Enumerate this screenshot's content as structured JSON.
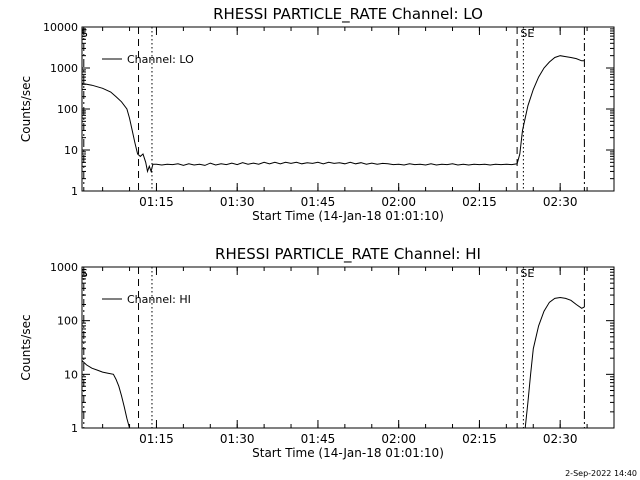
{
  "footer_date": "2-Sep-2022 14:40",
  "colors": {
    "line": "#000000",
    "background": "#ffffff"
  },
  "chart_data": [
    {
      "type": "line",
      "title": "RHESSI PARTICLE_RATE Channel: LO",
      "xlabel": "Start Time (14-Jan-18 01:01:10)",
      "ylabel": "Counts/sec",
      "y_scale": "log",
      "xlim": [
        "01:01:10",
        "02:40:00"
      ],
      "ylim": [
        1,
        10000
      ],
      "x_ticks": [
        "01:15",
        "01:30",
        "01:45",
        "02:00",
        "02:15",
        "02:30"
      ],
      "y_ticks": [
        "1",
        "10",
        "100",
        "1000",
        "10000"
      ],
      "legend": {
        "entries": [
          "Channel: LO"
        ],
        "position": "top-left"
      },
      "markers": [
        {
          "label": "S",
          "time": "01:01:30",
          "style": "dash-dot"
        },
        {
          "label": "",
          "time": "01:11:40",
          "style": "dashed"
        },
        {
          "label": "",
          "time": "01:14:10",
          "style": "dotted"
        },
        {
          "label": "",
          "time": "02:22:00",
          "style": "dashed"
        },
        {
          "label": "SE",
          "time": "02:23:10",
          "style": "dotted"
        },
        {
          "label": "",
          "time": "02:34:30",
          "style": "dash-dot"
        }
      ],
      "series": [
        {
          "name": "Channel: LO",
          "points": [
            [
              "01:01:10",
              420
            ],
            [
              "01:03:00",
              380
            ],
            [
              "01:05:00",
              320
            ],
            [
              "01:06:30",
              260
            ],
            [
              "01:07:30",
              200
            ],
            [
              "01:08:30",
              150
            ],
            [
              "01:09:30",
              100
            ],
            [
              "01:10:00",
              60
            ],
            [
              "01:10:30",
              30
            ],
            [
              "01:11:00",
              15
            ],
            [
              "01:11:30",
              8
            ],
            [
              "01:12:00",
              7
            ],
            [
              "01:12:30",
              8
            ],
            [
              "01:13:00",
              5
            ],
            [
              "01:13:20",
              3
            ],
            [
              "01:13:40",
              4
            ],
            [
              "01:14:00",
              3
            ],
            [
              "01:14:20",
              4.5
            ],
            [
              "01:15:00",
              4.5
            ],
            [
              "01:16:00",
              4.3
            ],
            [
              "01:17:00",
              4.5
            ],
            [
              "01:18:00",
              4.4
            ],
            [
              "01:19:00",
              4.6
            ],
            [
              "01:20:00",
              4.2
            ],
            [
              "01:21:00",
              4.6
            ],
            [
              "01:22:00",
              4.3
            ],
            [
              "01:23:00",
              4.5
            ],
            [
              "01:24:00",
              4.2
            ],
            [
              "01:25:00",
              4.8
            ],
            [
              "01:26:00",
              4.3
            ],
            [
              "01:27:00",
              4.6
            ],
            [
              "01:28:00",
              4.4
            ],
            [
              "01:29:00",
              4.8
            ],
            [
              "01:30:00",
              4.4
            ],
            [
              "01:31:00",
              4.9
            ],
            [
              "01:32:00",
              4.5
            ],
            [
              "01:33:00",
              4.8
            ],
            [
              "01:34:00",
              4.5
            ],
            [
              "01:35:00",
              5.0
            ],
            [
              "01:36:00",
              4.6
            ],
            [
              "01:37:00",
              5.0
            ],
            [
              "01:38:00",
              4.6
            ],
            [
              "01:39:00",
              5.0
            ],
            [
              "01:40:00",
              4.7
            ],
            [
              "01:41:00",
              5.0
            ],
            [
              "01:42:00",
              4.6
            ],
            [
              "01:43:00",
              4.9
            ],
            [
              "01:44:00",
              4.7
            ],
            [
              "01:45:00",
              5.0
            ],
            [
              "01:46:00",
              4.6
            ],
            [
              "01:47:00",
              5.0
            ],
            [
              "01:48:00",
              4.7
            ],
            [
              "01:49:00",
              4.9
            ],
            [
              "01:50:00",
              4.6
            ],
            [
              "01:51:00",
              5.0
            ],
            [
              "01:52:00",
              4.6
            ],
            [
              "01:53:00",
              4.9
            ],
            [
              "01:54:00",
              4.5
            ],
            [
              "01:55:00",
              4.8
            ],
            [
              "01:56:00",
              4.5
            ],
            [
              "01:57:00",
              4.7
            ],
            [
              "01:58:00",
              4.6
            ],
            [
              "01:59:00",
              4.4
            ],
            [
              "02:00:00",
              4.5
            ],
            [
              "02:01:00",
              4.3
            ],
            [
              "02:02:00",
              4.6
            ],
            [
              "02:03:00",
              4.4
            ],
            [
              "02:04:00",
              4.5
            ],
            [
              "02:05:00",
              4.3
            ],
            [
              "02:06:00",
              4.6
            ],
            [
              "02:07:00",
              4.3
            ],
            [
              "02:08:00",
              4.5
            ],
            [
              "02:09:00",
              4.4
            ],
            [
              "02:10:00",
              4.6
            ],
            [
              "02:11:00",
              4.3
            ],
            [
              "02:12:00",
              4.5
            ],
            [
              "02:13:00",
              4.3
            ],
            [
              "02:14:00",
              4.5
            ],
            [
              "02:15:00",
              4.4
            ],
            [
              "02:16:00",
              4.5
            ],
            [
              "02:17:00",
              4.3
            ],
            [
              "02:18:00",
              4.5
            ],
            [
              "02:19:00",
              4.4
            ],
            [
              "02:20:00",
              4.5
            ],
            [
              "02:21:00",
              4.4
            ],
            [
              "02:22:00",
              4.6
            ],
            [
              "02:22:30",
              8
            ],
            [
              "02:23:00",
              30
            ],
            [
              "02:23:30",
              60
            ],
            [
              "02:24:00",
              120
            ],
            [
              "02:25:00",
              300
            ],
            [
              "02:26:00",
              600
            ],
            [
              "02:27:00",
              1000
            ],
            [
              "02:28:00",
              1400
            ],
            [
              "02:29:00",
              1800
            ],
            [
              "02:30:00",
              2000
            ],
            [
              "02:31:00",
              1900
            ],
            [
              "02:32:00",
              1800
            ],
            [
              "02:33:00",
              1700
            ],
            [
              "02:34:00",
              1500
            ],
            [
              "02:34:30",
              1500
            ]
          ]
        }
      ]
    },
    {
      "type": "line",
      "title": "RHESSI PARTICLE_RATE Channel: HI",
      "xlabel": "Start Time (14-Jan-18 01:01:10)",
      "ylabel": "Counts/sec",
      "y_scale": "log",
      "xlim": [
        "01:01:10",
        "02:40:00"
      ],
      "ylim": [
        1,
        1000
      ],
      "x_ticks": [
        "01:15",
        "01:30",
        "01:45",
        "02:00",
        "02:15",
        "02:30"
      ],
      "y_ticks": [
        "1",
        "10",
        "100",
        "1000"
      ],
      "legend": {
        "entries": [
          "Channel: HI"
        ],
        "position": "top-left"
      },
      "markers": [
        {
          "label": "S",
          "time": "01:01:30",
          "style": "dash-dot"
        },
        {
          "label": "",
          "time": "01:11:40",
          "style": "dashed"
        },
        {
          "label": "",
          "time": "01:14:10",
          "style": "dotted"
        },
        {
          "label": "",
          "time": "02:22:00",
          "style": "dashed"
        },
        {
          "label": "SE",
          "time": "02:23:10",
          "style": "dotted"
        },
        {
          "label": "",
          "time": "02:34:30",
          "style": "dash-dot"
        }
      ],
      "series": [
        {
          "name": "Channel: HI",
          "points": [
            [
              "01:01:10",
              18
            ],
            [
              "01:02:00",
              15
            ],
            [
              "01:03:00",
              13
            ],
            [
              "01:04:00",
              12
            ],
            [
              "01:05:00",
              11
            ],
            [
              "01:06:00",
              10.5
            ],
            [
              "01:07:00",
              10
            ],
            [
              "01:07:30",
              8
            ],
            [
              "01:08:00",
              6
            ],
            [
              "01:08:30",
              4
            ],
            [
              "01:09:00",
              2.5
            ],
            [
              "01:09:30",
              1.5
            ],
            [
              "01:10:00",
              1
            ],
            null,
            [
              "02:23:30",
              1
            ],
            [
              "02:24:00",
              3
            ],
            [
              "02:24:30",
              10
            ],
            [
              "02:25:00",
              30
            ],
            [
              "02:26:00",
              80
            ],
            [
              "02:27:00",
              150
            ],
            [
              "02:28:00",
              220
            ],
            [
              "02:29:00",
              260
            ],
            [
              "02:30:00",
              270
            ],
            [
              "02:31:00",
              260
            ],
            [
              "02:32:00",
              240
            ],
            [
              "02:33:00",
              200
            ],
            [
              "02:34:00",
              170
            ],
            [
              "02:34:30",
              180
            ]
          ]
        }
      ]
    }
  ]
}
